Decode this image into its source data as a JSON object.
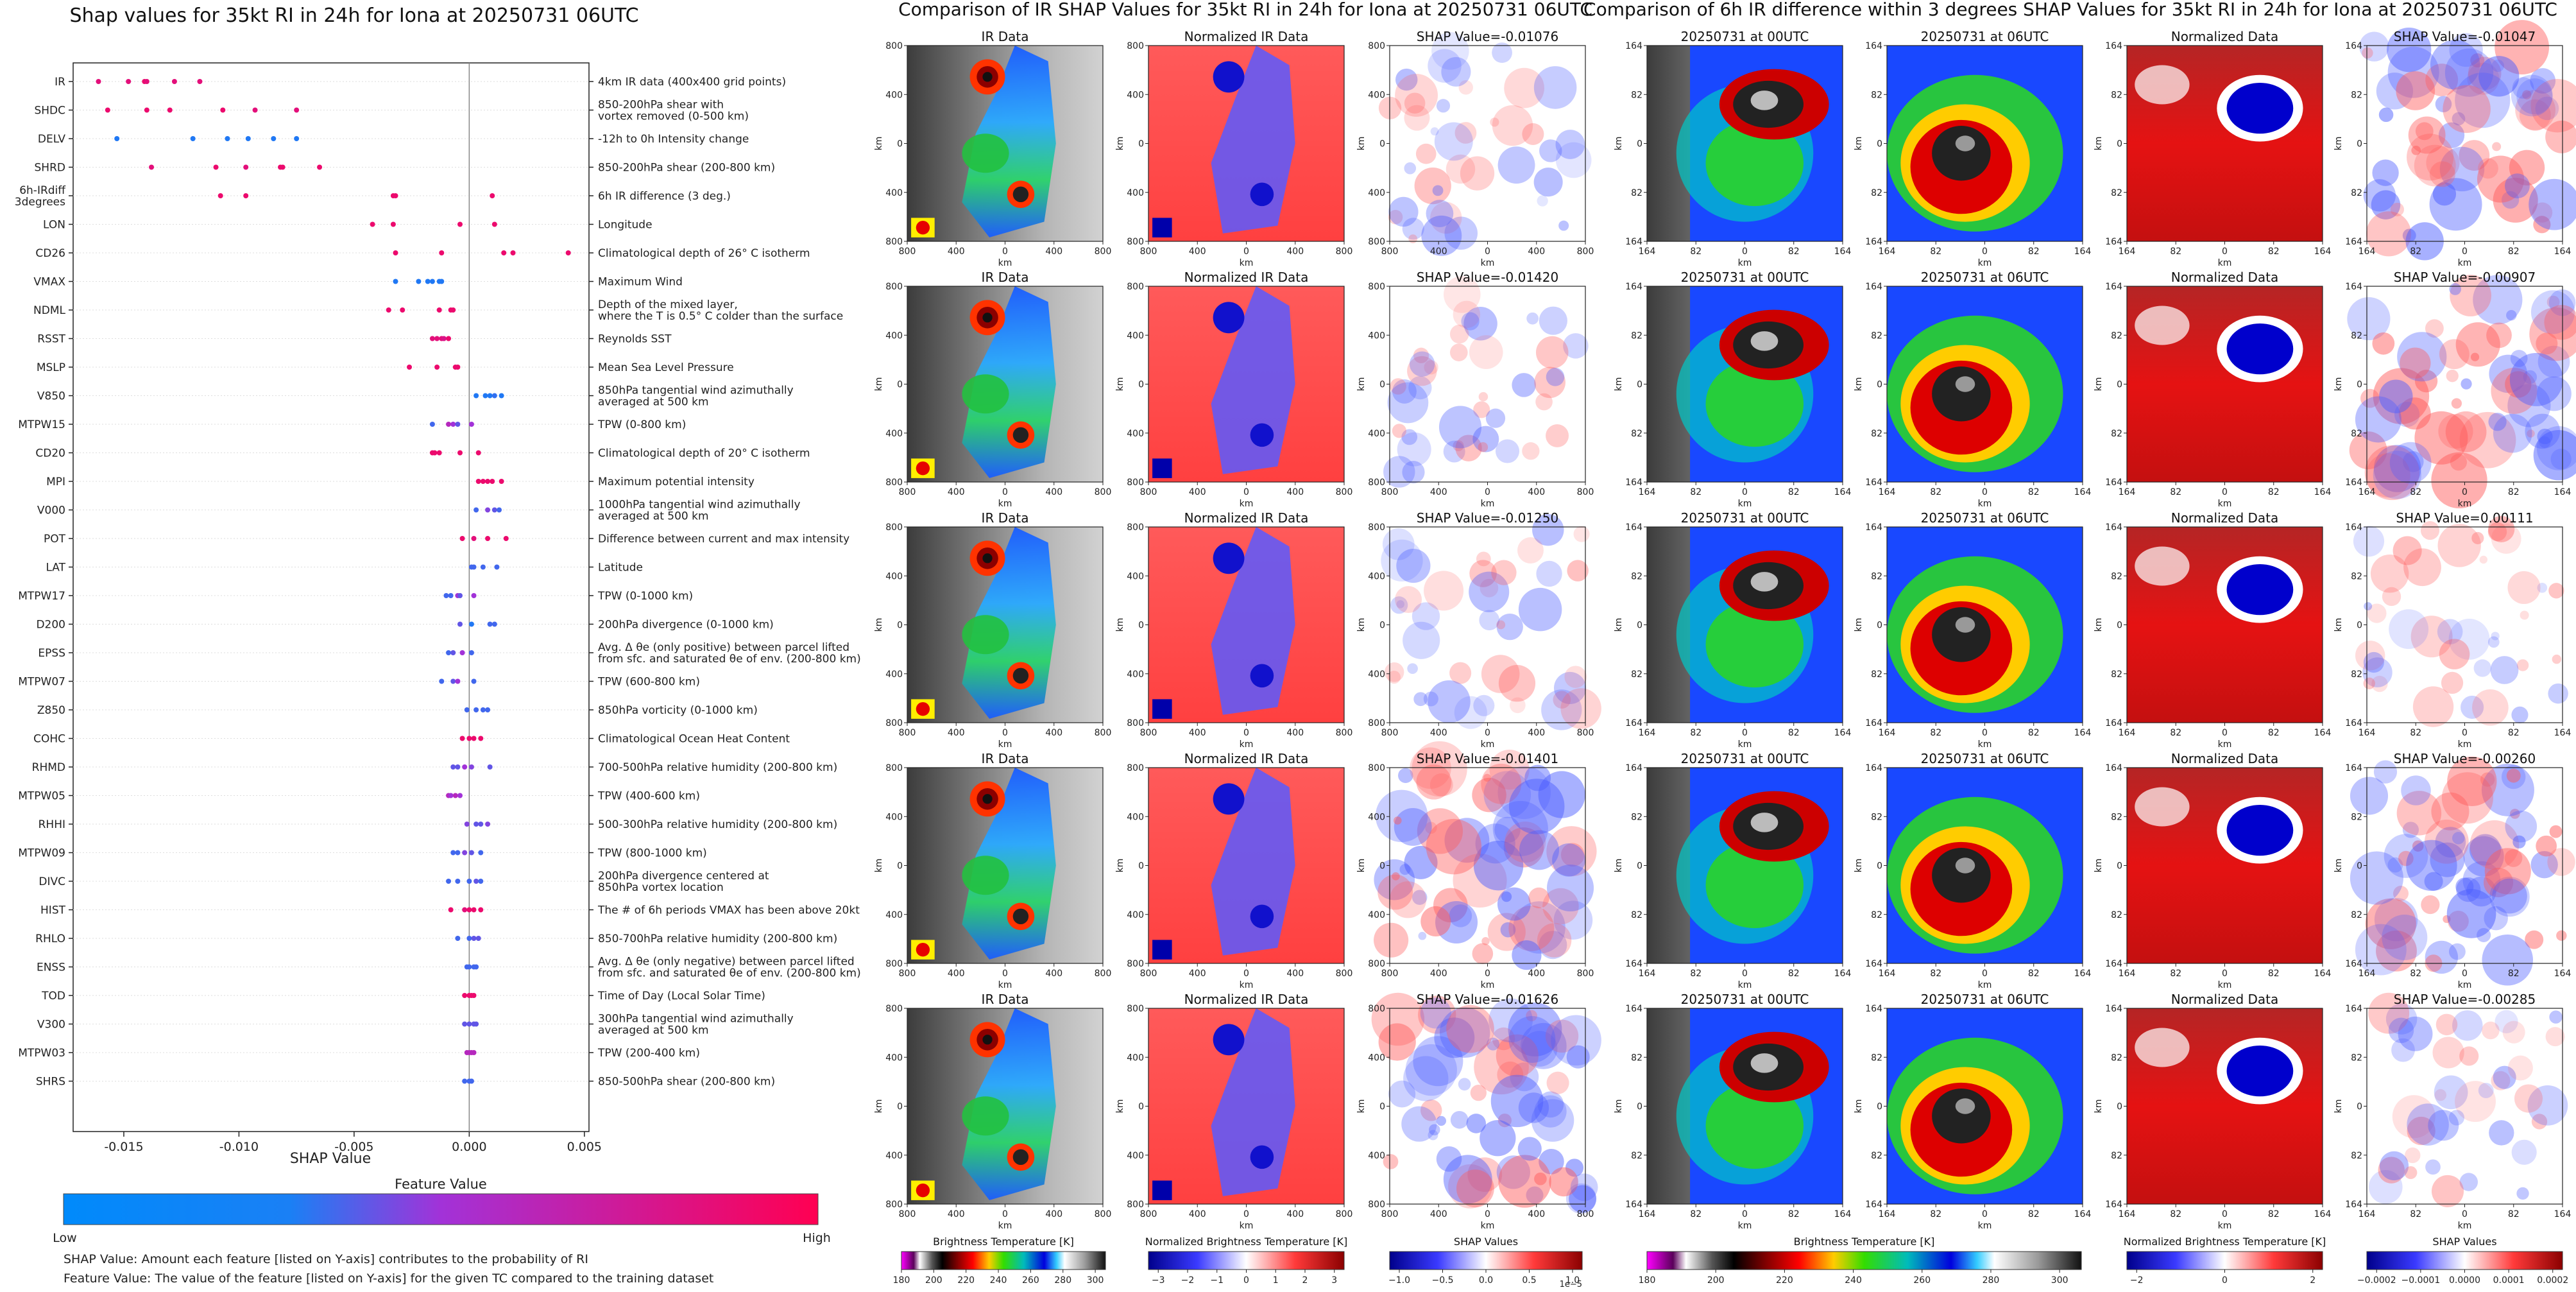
{
  "shap": {
    "title": "Shap values for 35kt RI in 24h for Iona at 20250731 06UTC",
    "xlabel": "SHAP Value",
    "ticks": [
      "-0.015",
      "-0.010",
      "-0.005",
      "0.000",
      "0.005"
    ],
    "colorbar_title": "Feature Value",
    "colorbar_low": "Low",
    "colorbar_high": "High",
    "footnote1": "SHAP Value: Amount each feature [listed on Y-axis] contributes to the probability of RI",
    "footnote2": "Feature Value: The value of the feature [listed on Y-axis] for the given TC compared to the training dataset",
    "features": [
      {
        "name": "IR",
        "desc": "4km IR data (400x400 grid points)"
      },
      {
        "name": "SHDC",
        "desc": "850-200hPa shear with|vortex removed (0-500 km)"
      },
      {
        "name": "DELV",
        "desc": "-12h to 0h Intensity change"
      },
      {
        "name": "SHRD",
        "desc": "850-200hPa shear (200-800 km)"
      },
      {
        "name": "6h-IRdiff|3degrees",
        "desc": "6h IR difference (3 deg.)"
      },
      {
        "name": "LON",
        "desc": "Longitude"
      },
      {
        "name": "CD26",
        "desc": "Climatological depth of 26° C isotherm"
      },
      {
        "name": "VMAX",
        "desc": "Maximum Wind"
      },
      {
        "name": "NDML",
        "desc": "Depth of the mixed layer,|where the T is 0.5° C colder than the surface"
      },
      {
        "name": "RSST",
        "desc": "Reynolds SST"
      },
      {
        "name": "MSLP",
        "desc": "Mean Sea Level Pressure"
      },
      {
        "name": "V850",
        "desc": "850hPa tangential wind azimuthally|averaged at 500 km"
      },
      {
        "name": "MTPW15",
        "desc": "TPW (0-800 km)"
      },
      {
        "name": "CD20",
        "desc": "Climatological depth of 20° C isotherm"
      },
      {
        "name": "MPI",
        "desc": "Maximum potential intensity"
      },
      {
        "name": "V000",
        "desc": "1000hPa tangential wind azimuthally|averaged at 500 km"
      },
      {
        "name": "POT",
        "desc": "Difference between current and max intensity"
      },
      {
        "name": "LAT",
        "desc": "Latitude"
      },
      {
        "name": "MTPW17",
        "desc": "TPW (0-1000 km)"
      },
      {
        "name": "D200",
        "desc": "200hPa divergence (0-1000 km)"
      },
      {
        "name": "EPSS",
        "desc": "Avg. Δ θe (only positive) between parcel lifted|from sfc. and saturated θe of env. (200-800 km)"
      },
      {
        "name": "MTPW07",
        "desc": "TPW (600-800 km)"
      },
      {
        "name": "Z850",
        "desc": "850hPa vorticity (0-1000 km)"
      },
      {
        "name": "COHC",
        "desc": "Climatological Ocean Heat Content"
      },
      {
        "name": "RHMD",
        "desc": "700-500hPa relative humidity (200-800 km)"
      },
      {
        "name": "MTPW05",
        "desc": "TPW (400-600 km)"
      },
      {
        "name": "RHHI",
        "desc": "500-300hPa relative humidity (200-800 km)"
      },
      {
        "name": "MTPW09",
        "desc": "TPW (800-1000 km)"
      },
      {
        "name": "DIVC",
        "desc": "200hPa divergence centered at|850hPa vortex location"
      },
      {
        "name": "HIST",
        "desc": "The # of 6h periods VMAX has been above 20kt"
      },
      {
        "name": "RHLO",
        "desc": "850-700hPa relative humidity (200-800 km)"
      },
      {
        "name": "ENSS",
        "desc": "Avg. Δ θe (only negative) between parcel lifted|from sfc. and saturated θe of env. (200-800 km)"
      },
      {
        "name": "TOD",
        "desc": "Time of Day (Local Solar Time)"
      },
      {
        "name": "V300",
        "desc": "300hPa tangential wind azimuthally|averaged at 500 km"
      },
      {
        "name": "MTPW03",
        "desc": "TPW (200-400 km)"
      },
      {
        "name": "SHRS",
        "desc": "850-500hPa shear (200-800 km)"
      }
    ]
  },
  "chart_data": {
    "type": "scatter",
    "title": "Shap values for 35kt RI in 24h for Iona at 20250731 06UTC",
    "xlabel": "SHAP Value",
    "ylabel": "",
    "xlim": [
      -0.0172,
      0.0052
    ],
    "grid": false,
    "colormap": [
      "#008afb",
      "#a232d8",
      "#ff0052"
    ],
    "note": "",
    "points": {
      "IR": [
        [
          -0.0161,
          0.85
        ],
        [
          -0.0148,
          0.85
        ],
        [
          -0.0141,
          0.9
        ],
        [
          -0.014,
          0.85
        ],
        [
          -0.0128,
          0.85
        ],
        [
          -0.0117,
          0.85
        ]
      ],
      "SHDC": [
        [
          -0.0157,
          0.9
        ],
        [
          -0.014,
          0.9
        ],
        [
          -0.013,
          0.9
        ],
        [
          -0.0107,
          0.9
        ],
        [
          -0.0093,
          0.85
        ],
        [
          -0.0075,
          0.85
        ]
      ],
      "DELV": [
        [
          -0.0153,
          0.1
        ],
        [
          -0.012,
          0.1
        ],
        [
          -0.0105,
          0.1
        ],
        [
          -0.0096,
          0.1
        ],
        [
          -0.0085,
          0.1
        ],
        [
          -0.0075,
          0.1
        ]
      ],
      "SHRD": [
        [
          -0.0138,
          0.85
        ],
        [
          -0.011,
          0.9
        ],
        [
          -0.0097,
          0.85
        ],
        [
          -0.0082,
          0.9
        ],
        [
          -0.0081,
          0.9
        ],
        [
          -0.0065,
          0.9
        ]
      ],
      "6h-IRdiff|3degrees": [
        [
          -0.0108,
          0.9
        ],
        [
          -0.0097,
          0.9
        ],
        [
          -0.0033,
          0.9
        ],
        [
          -0.0032,
          0.9
        ],
        [
          0.001,
          0.9
        ]
      ],
      "LON": [
        [
          -0.0042,
          0.9
        ],
        [
          -0.0033,
          0.9
        ],
        [
          -0.0004,
          0.9
        ],
        [
          0.0011,
          0.9
        ]
      ],
      "CD26": [
        [
          -0.0032,
          0.9
        ],
        [
          -0.0012,
          0.9
        ],
        [
          0.0015,
          0.9
        ],
        [
          0.0019,
          0.9
        ],
        [
          0.0043,
          0.9
        ]
      ],
      "VMAX": [
        [
          -0.0032,
          0.1
        ],
        [
          -0.0022,
          0.1
        ],
        [
          -0.0018,
          0.1
        ],
        [
          -0.0016,
          0.1
        ],
        [
          -0.0013,
          0.1
        ],
        [
          -0.0012,
          0.1
        ]
      ],
      "NDML": [
        [
          -0.0035,
          0.9
        ],
        [
          -0.0029,
          0.9
        ],
        [
          -0.0013,
          0.9
        ],
        [
          -0.0008,
          0.9
        ],
        [
          -0.0007,
          0.9
        ]
      ],
      "RSST": [
        [
          -0.0016,
          0.85
        ],
        [
          -0.0014,
          0.85
        ],
        [
          -0.0012,
          0.85
        ],
        [
          -0.0011,
          0.8
        ],
        [
          -0.0009,
          0.9
        ]
      ],
      "MSLP": [
        [
          -0.0026,
          0.9
        ],
        [
          -0.0014,
          0.9
        ],
        [
          -0.0006,
          0.9
        ],
        [
          -0.0005,
          0.9
        ]
      ],
      "V850": [
        [
          0.0003,
          0.1
        ],
        [
          0.0007,
          0.1
        ],
        [
          0.0009,
          0.1
        ],
        [
          0.0011,
          0.15
        ],
        [
          0.0014,
          0.1
        ]
      ],
      "MTPW15": [
        [
          -0.0016,
          0.2
        ],
        [
          -0.0009,
          0.6
        ],
        [
          -0.0007,
          0.5
        ],
        [
          -0.0005,
          0.3
        ],
        [
          0.0001,
          0.5
        ]
      ],
      "CD20": [
        [
          -0.0016,
          0.9
        ],
        [
          -0.0015,
          0.9
        ],
        [
          -0.0013,
          0.9
        ],
        [
          -0.0004,
          0.9
        ],
        [
          0.0004,
          0.9
        ]
      ],
      "MPI": [
        [
          0.0004,
          0.9
        ],
        [
          0.0006,
          0.9
        ],
        [
          0.0008,
          0.9
        ],
        [
          0.001,
          0.9
        ],
        [
          0.0014,
          0.9
        ]
      ],
      "V000": [
        [
          0.0003,
          0.2
        ],
        [
          0.0008,
          0.4
        ],
        [
          0.0011,
          0.3
        ],
        [
          0.0013,
          0.2
        ]
      ],
      "POT": [
        [
          -0.0003,
          0.9
        ],
        [
          0.0002,
          0.85
        ],
        [
          0.0008,
          0.9
        ],
        [
          0.0016,
          0.9
        ]
      ],
      "LAT": [
        [
          0.0001,
          0.2
        ],
        [
          0.0002,
          0.2
        ],
        [
          0.0006,
          0.2
        ],
        [
          0.0012,
          0.2
        ]
      ],
      "MTPW17": [
        [
          -0.001,
          0.2
        ],
        [
          -0.0008,
          0.2
        ],
        [
          -0.0005,
          0.5
        ],
        [
          -0.0004,
          0.3
        ],
        [
          0.0002,
          0.5
        ]
      ],
      "D200": [
        [
          -0.0004,
          0.3
        ],
        [
          0.0001,
          0.1
        ],
        [
          0.0009,
          0.2
        ],
        [
          0.0011,
          0.2
        ]
      ],
      "EPSS": [
        [
          -0.0009,
          0.2
        ],
        [
          -0.0007,
          0.3
        ],
        [
          -0.0003,
          0.5
        ],
        [
          0.0001,
          0.2
        ]
      ],
      "MTPW07": [
        [
          -0.0012,
          0.2
        ],
        [
          -0.0007,
          0.3
        ],
        [
          -0.0005,
          0.5
        ],
        [
          0.0002,
          0.2
        ]
      ],
      "Z850": [
        [
          -0.0001,
          0.2
        ],
        [
          0.0003,
          0.2
        ],
        [
          0.0006,
          0.2
        ],
        [
          0.0008,
          0.2
        ]
      ],
      "COHC": [
        [
          -0.0003,
          0.9
        ],
        [
          0.0,
          0.9
        ],
        [
          0.0002,
          0.9
        ],
        [
          0.0005,
          0.9
        ]
      ],
      "RHMD": [
        [
          -0.0007,
          0.3
        ],
        [
          -0.0005,
          0.3
        ],
        [
          -0.0002,
          0.5
        ],
        [
          0.0001,
          0.4
        ],
        [
          0.0009,
          0.3
        ]
      ],
      "MTPW05": [
        [
          -0.0009,
          0.6
        ],
        [
          -0.0008,
          0.5
        ],
        [
          -0.0006,
          0.6
        ],
        [
          -0.0004,
          0.5
        ]
      ],
      "RHHI": [
        [
          -0.0001,
          0.4
        ],
        [
          0.0003,
          0.3
        ],
        [
          0.0005,
          0.3
        ],
        [
          0.0008,
          0.4
        ]
      ],
      "MTPW09": [
        [
          -0.0007,
          0.2
        ],
        [
          -0.0005,
          0.2
        ],
        [
          -0.0002,
          0.4
        ],
        [
          0.0001,
          0.3
        ],
        [
          0.0005,
          0.2
        ]
      ],
      "DIVC": [
        [
          -0.0009,
          0.2
        ],
        [
          -0.0005,
          0.2
        ],
        [
          0.0,
          0.2
        ],
        [
          0.0003,
          0.3
        ],
        [
          0.0005,
          0.2
        ]
      ],
      "HIST": [
        [
          -0.0008,
          0.9
        ],
        [
          -0.0002,
          0.85
        ],
        [
          0.0,
          0.9
        ],
        [
          0.0002,
          0.9
        ],
        [
          0.0005,
          0.9
        ]
      ],
      "RHLO": [
        [
          -0.0005,
          0.2
        ],
        [
          0.0,
          0.2
        ],
        [
          0.0002,
          0.3
        ],
        [
          0.0004,
          0.3
        ]
      ],
      "ENSS": [
        [
          -0.0001,
          0.2
        ],
        [
          0.0,
          0.2
        ],
        [
          0.0002,
          0.2
        ],
        [
          0.0003,
          0.2
        ]
      ],
      "TOD": [
        [
          -0.0002,
          0.9
        ],
        [
          0.0,
          0.9
        ],
        [
          0.0001,
          0.9
        ],
        [
          0.0002,
          0.9
        ]
      ],
      "V300": [
        [
          -0.0002,
          0.3
        ],
        [
          0.0,
          0.3
        ],
        [
          0.0002,
          0.3
        ],
        [
          0.0003,
          0.3
        ]
      ],
      "MTPW03": [
        [
          -0.0001,
          0.6
        ],
        [
          0.0,
          0.6
        ],
        [
          0.0001,
          0.6
        ],
        [
          0.0002,
          0.6
        ]
      ],
      "SHRS": [
        [
          -0.0002,
          0.2
        ],
        [
          0.0,
          0.2
        ],
        [
          0.0001,
          0.2
        ]
      ]
    }
  },
  "ir": {
    "title": "Comparison of IR SHAP Values for 35kt RI in 24h for Iona at 20250731 06UTC",
    "col_titles": [
      "IR Data",
      "Normalized IR Data"
    ],
    "shap_titles": [
      "SHAP Value=-0.01076",
      "SHAP Value=-0.01420",
      "SHAP Value=-0.01250",
      "SHAP Value=-0.01401",
      "SHAP Value=-0.01626"
    ],
    "ticks": [
      "800",
      "400",
      "0",
      "400",
      "800"
    ],
    "axis_label": "km",
    "cb": [
      {
        "label": "Brightness Temperature [K]",
        "ticks": [
          "180",
          "200",
          "220",
          "240",
          "260",
          "280",
          "300"
        ],
        "kind": "bt"
      },
      {
        "label": "Normalized Brightness Temperature [K]",
        "ticks": [
          "−3",
          "−2",
          "−1",
          "0",
          "1",
          "2",
          "3"
        ],
        "kind": "bwr"
      },
      {
        "label": "SHAP Values",
        "ticks": [
          "−1.0",
          "−0.5",
          "0.0",
          "0.5",
          "1.0"
        ],
        "kind": "bwr",
        "exp": "1e−5"
      }
    ]
  },
  "diff": {
    "title": "Comparison of 6h IR difference within 3 degrees SHAP Values for 35kt RI in 24h for Iona at 20250731 06UTC",
    "col_titles": [
      "20250731 at 00UTC",
      "20250731 at 06UTC",
      "Normalized Data"
    ],
    "shap_titles": [
      "SHAP Value=-0.01047",
      "SHAP Value=-0.00907",
      "SHAP Value=0.00111",
      "SHAP Value=-0.00260",
      "SHAP Value=-0.00285"
    ],
    "ticks": [
      "164",
      "82",
      "0",
      "82",
      "164"
    ],
    "axis_label": "km",
    "cb": [
      {
        "label": "Brightness Temperature [K]",
        "ticks": [
          "180",
          "200",
          "220",
          "240",
          "260",
          "280",
          "300"
        ],
        "kind": "bt"
      },
      {
        "label": "Normalized Brightness Temperature [K]",
        "ticks": [
          "−2",
          "0",
          "2"
        ],
        "kind": "bwr"
      },
      {
        "label": "SHAP Values",
        "ticks": [
          "−0.0002",
          "−0.0001",
          "0.0000",
          "0.0001",
          "0.0002"
        ],
        "kind": "bwr"
      }
    ]
  }
}
